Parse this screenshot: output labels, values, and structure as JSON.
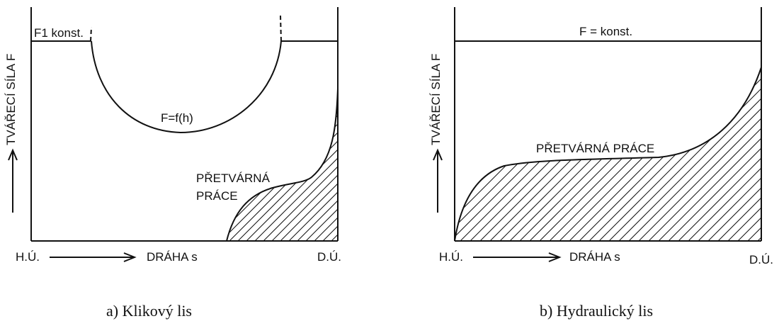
{
  "left": {
    "force_label": "F1 konst.",
    "curve_label": "F=f(h)",
    "work_label_line1": "PŘETVÁRNÁ",
    "work_label_line2": "PRÁCE",
    "y_axis_label": "TVÁŘECÍ SÍLA F",
    "x_start": "H.Ú.",
    "x_axis_label": "DRÁHA s",
    "x_end": "D.Ú.",
    "caption": "a) Klikový lis"
  },
  "right": {
    "force_label": "F = konst.",
    "work_label": "PŘETVÁRNÁ PRÁCE",
    "y_axis_label": "TVÁŘECÍ SÍLA F",
    "x_start": "H.Ú.",
    "x_axis_label": "DRÁHA s",
    "x_end": "D.Ú.",
    "caption": "b) Hydraulický lis"
  }
}
